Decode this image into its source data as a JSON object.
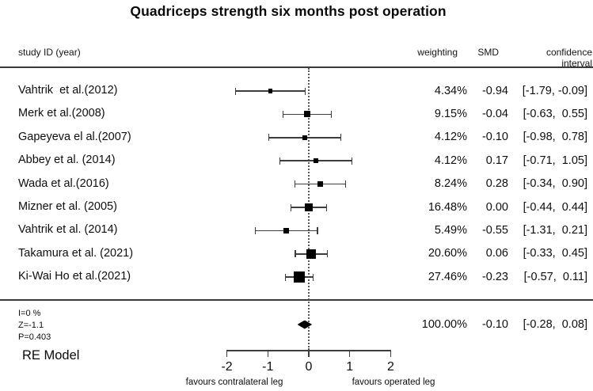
{
  "title": "Quadriceps strength six months post operation",
  "header": {
    "study": "study ID (year)",
    "weighting": "weighting",
    "smd": "SMD",
    "ci": "confidence interval"
  },
  "chart_data": {
    "type": "forest",
    "title": "Quadriceps strength six months post operation",
    "x_axis": {
      "ticks": [
        -2,
        -1,
        0,
        1,
        2
      ],
      "tick_labels": [
        "-2",
        "-1",
        "0",
        "1",
        "2"
      ],
      "xlim": [
        -2,
        2
      ],
      "reference_line": 0,
      "label_left": "favours contralateral leg",
      "label_right": "favours operated leg"
    },
    "studies": [
      {
        "label": "Vahtrik  et al.(2012)",
        "weighting": "4.34%",
        "weight": 4.34,
        "smd": -0.94,
        "smd_text": "-0.94",
        "ci": [
          -1.79,
          -0.09
        ],
        "ci_text": "[-1.79, -0.09]"
      },
      {
        "label": "Merk et al.(2008)",
        "weighting": "9.15%",
        "weight": 9.15,
        "smd": -0.04,
        "smd_text": "-0.04",
        "ci": [
          -0.63,
          0.55
        ],
        "ci_text": "[-0.63,  0.55]"
      },
      {
        "label": "Gapeyeva el al.(2007)",
        "weighting": "4.12%",
        "weight": 4.12,
        "smd": -0.1,
        "smd_text": "-0.10",
        "ci": [
          -0.98,
          0.78
        ],
        "ci_text": "[-0.98,  0.78]"
      },
      {
        "label": "Abbey et al. (2014)",
        "weighting": "4.12%",
        "weight": 4.12,
        "smd": 0.17,
        "smd_text": "0.17",
        "ci": [
          -0.71,
          1.05
        ],
        "ci_text": "[-0.71,  1.05]"
      },
      {
        "label": "Wada et al.(2016)",
        "weighting": "8.24%",
        "weight": 8.24,
        "smd": 0.28,
        "smd_text": "0.28",
        "ci": [
          -0.34,
          0.9
        ],
        "ci_text": "[-0.34,  0.90]"
      },
      {
        "label": "Mizner et al. (2005)",
        "weighting": "16.48%",
        "weight": 16.48,
        "smd": 0.0,
        "smd_text": "0.00",
        "ci": [
          -0.44,
          0.44
        ],
        "ci_text": "[-0.44,  0.44]"
      },
      {
        "label": "Vahtrik et al. (2014)",
        "weighting": "5.49%",
        "weight": 5.49,
        "smd": -0.55,
        "smd_text": "-0.55",
        "ci": [
          -1.31,
          0.21
        ],
        "ci_text": "[-1.31,  0.21]"
      },
      {
        "label": "Takamura et al. (2021)",
        "weighting": "20.60%",
        "weight": 20.6,
        "smd": 0.06,
        "smd_text": "0.06",
        "ci": [
          -0.33,
          0.45
        ],
        "ci_text": "[-0.33,  0.45]"
      },
      {
        "label": "Ki-Wai Ho et al.(2021)",
        "weighting": "27.46%",
        "weight": 27.46,
        "smd": -0.23,
        "smd_text": "-0.23",
        "ci": [
          -0.57,
          0.11
        ],
        "ci_text": "[-0.57,  0.11]"
      }
    ],
    "summary": {
      "model_label": "RE Model",
      "stats": [
        "I=0 %",
        "Z=-1.1",
        "P=0.403"
      ],
      "weighting": "100.00%",
      "smd": -0.1,
      "smd_text": "-0.10",
      "ci": [
        -0.28,
        0.08
      ],
      "ci_text": "[-0.28,  0.08]"
    },
    "colors": {
      "marker": "#000000",
      "line": "#3d3d3d",
      "text": "#111111"
    },
    "legend": null,
    "grid": false
  }
}
